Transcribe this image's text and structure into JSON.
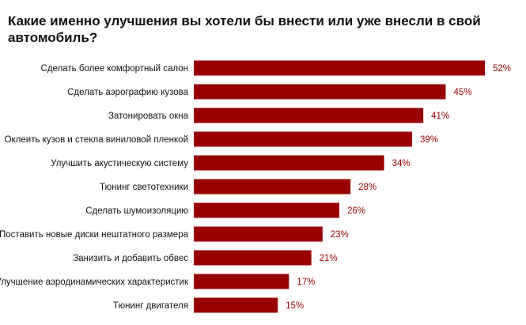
{
  "colors": {
    "bar": "#990000",
    "value_label": "#990000",
    "text": "#111111",
    "background": "#ffffff"
  },
  "chart_data": {
    "type": "bar",
    "orientation": "horizontal",
    "title": "Какие именно улучшения вы хотели бы внести или уже внесли в свой автомобиль?",
    "categories": [
      "Сделать более комфортный салон",
      "Сделать аэрографию кузова",
      "Затонировать окна",
      "Оклеить кузов и стекла виниловой пленкой",
      "Улучшить акустическую систему",
      "Тюнинг светотехники",
      "Сделать шумоизоляцию",
      "Поставить новые диски нештатного размера",
      "Занизить и добавить обвес",
      "Улучшение аэродинамических характеристик",
      "Тюнинг двигателя"
    ],
    "values": [
      52,
      45,
      41,
      39,
      34,
      28,
      26,
      23,
      21,
      17,
      15
    ],
    "value_labels": [
      "52%",
      "45%",
      "41%",
      "39%",
      "34%",
      "28%",
      "26%",
      "23%",
      "21%",
      "17%",
      "15%"
    ],
    "unit": "%",
    "xlim": [
      0,
      52
    ],
    "grid": false,
    "legend": "none"
  }
}
